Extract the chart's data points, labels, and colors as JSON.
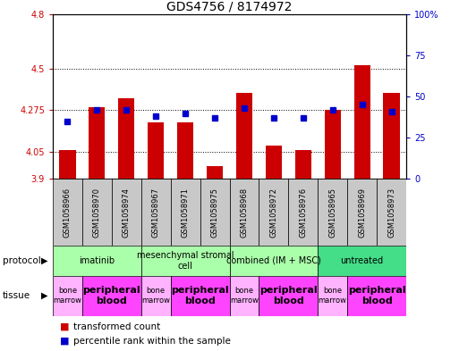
{
  "title": "GDS4756 / 8174972",
  "samples": [
    "GSM1058966",
    "GSM1058970",
    "GSM1058974",
    "GSM1058967",
    "GSM1058971",
    "GSM1058975",
    "GSM1058968",
    "GSM1058972",
    "GSM1058976",
    "GSM1058965",
    "GSM1058969",
    "GSM1058973"
  ],
  "red_values": [
    4.06,
    4.29,
    4.34,
    4.21,
    4.21,
    3.97,
    4.37,
    4.08,
    4.06,
    4.275,
    4.52,
    4.37
  ],
  "blue_values": [
    35,
    42,
    42,
    38,
    40,
    37,
    43,
    37,
    37,
    42,
    45,
    41
  ],
  "ylim_left": [
    3.9,
    4.8
  ],
  "ylim_right": [
    0,
    100
  ],
  "yticks_left": [
    3.9,
    4.05,
    4.275,
    4.5,
    4.8
  ],
  "ytick_labels_left": [
    "3.9",
    "4.05",
    "4.275",
    "4.5",
    "4.8"
  ],
  "yticks_right": [
    0,
    25,
    50,
    75,
    100
  ],
  "ytick_labels_right": [
    "0",
    "25",
    "50",
    "75",
    "100%"
  ],
  "bar_bottom": 3.9,
  "protocols": [
    {
      "label": "imatinib",
      "start": 0,
      "end": 3,
      "color": "#AAFFAA"
    },
    {
      "label": "mesenchymal stromal\ncell",
      "start": 3,
      "end": 6,
      "color": "#AAFFAA"
    },
    {
      "label": "combined (IM + MSC)",
      "start": 6,
      "end": 9,
      "color": "#AAFFAA"
    },
    {
      "label": "untreated",
      "start": 9,
      "end": 12,
      "color": "#44DD88"
    }
  ],
  "tissues": [
    {
      "label": "bone\nmarrow",
      "start": 0,
      "end": 1,
      "bold": false
    },
    {
      "label": "peripheral\nblood",
      "start": 1,
      "end": 3,
      "bold": true
    },
    {
      "label": "bone\nmarrow",
      "start": 3,
      "end": 4,
      "bold": false
    },
    {
      "label": "peripheral\nblood",
      "start": 4,
      "end": 6,
      "bold": true
    },
    {
      "label": "bone\nmarrow",
      "start": 6,
      "end": 7,
      "bold": false
    },
    {
      "label": "peripheral\nblood",
      "start": 7,
      "end": 9,
      "bold": true
    },
    {
      "label": "bone\nmarrow",
      "start": 9,
      "end": 10,
      "bold": false
    },
    {
      "label": "peripheral\nblood",
      "start": 10,
      "end": 12,
      "bold": true
    }
  ],
  "tissue_color_marrow": "#FFB3FF",
  "tissue_color_blood": "#FF44FF",
  "red_color": "#CC0000",
  "blue_color": "#0000CC",
  "bar_width": 0.55,
  "blue_marker_size": 5,
  "title_fontsize": 10,
  "tick_fontsize": 7,
  "sample_label_fontsize": 6,
  "proto_fontsize": 7,
  "tissue_fontsize_marrow": 6,
  "tissue_fontsize_blood": 8,
  "legend_fontsize": 7.5,
  "bg_color": "#FFFFFF",
  "sample_bg_color": "#C8C8C8",
  "left_tick_color": "#CC0000",
  "right_tick_color": "#0000CC",
  "grid_lines": [
    4.05,
    4.275,
    4.5
  ]
}
